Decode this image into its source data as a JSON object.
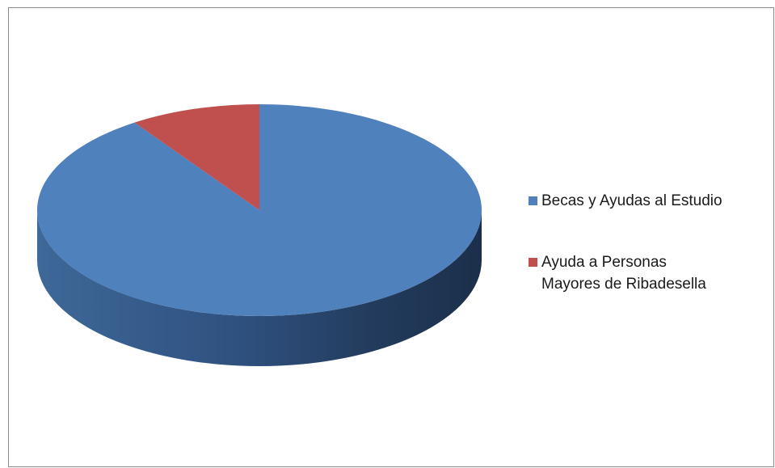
{
  "chart_data": {
    "type": "pie",
    "style": "3d",
    "title": "",
    "slices": [
      {
        "label": "Becas y Ayudas al Estudio",
        "value": 90.5,
        "color": "#4f81bd"
      },
      {
        "label": "Ayuda a Personas Mayores de Ribadesella",
        "value": 9.5,
        "color": "#c0504d"
      }
    ],
    "legend": {
      "placement": "right",
      "items": [
        {
          "lines": [
            "Becas y Ayudas al Estudio"
          ],
          "color": "#4f81bd"
        },
        {
          "lines": [
            "Ayuda a Personas",
            "Mayores de Ribadesella"
          ],
          "color": "#c0504d"
        }
      ]
    }
  }
}
